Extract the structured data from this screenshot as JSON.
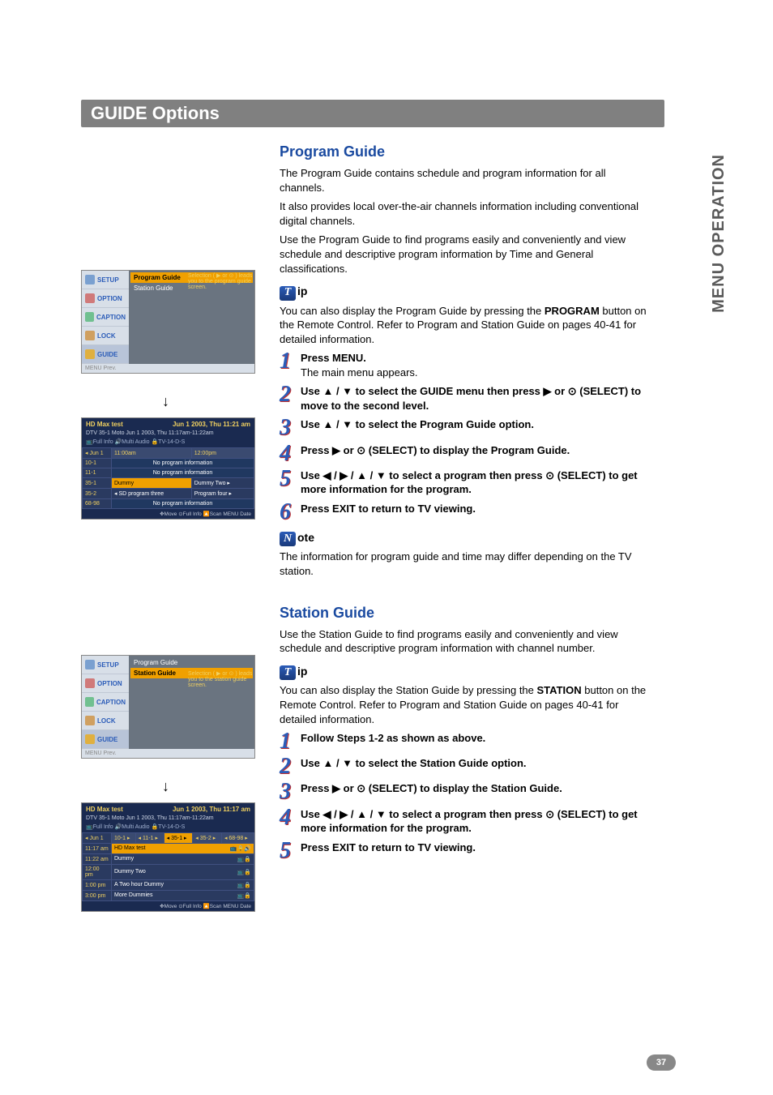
{
  "page": {
    "header": "GUIDE Options",
    "sideTab": "MENU OPERATION",
    "pageNumber": "37"
  },
  "programGuide": {
    "title": "Program Guide",
    "intro1": "The Program Guide contains schedule and program information for all channels.",
    "intro2": "It also provides local over-the-air channels information including conventional digital channels.",
    "intro3": "Use the Program Guide to find programs easily and conveniently and view schedule and descriptive program information by Time and General classifications.",
    "tipGlyph": "T",
    "tipSuffix": "ip",
    "tipBody1": "You can also display the Program Guide by pressing the ",
    "tipBold": "PROGRAM",
    "tipBody2": " button on the Remote Control. Refer to Program and Station Guide on pages 40-41 for detailed information.",
    "steps": [
      {
        "n": "1",
        "bold": "Press MENU.",
        "sub": "The main menu appears."
      },
      {
        "n": "2",
        "bold": "Use ▲ / ▼ to select the GUIDE menu then press ▶ or ⊙ (SELECT) to move to the second level."
      },
      {
        "n": "3",
        "bold": "Use ▲ / ▼ to select the Program Guide option."
      },
      {
        "n": "4",
        "bold": "Press ▶ or ⊙ (SELECT) to display the Program Guide."
      },
      {
        "n": "5",
        "bold": "Use ◀ / ▶ / ▲ / ▼ to select a program then press ⊙ (SELECT) to get more information for the program."
      },
      {
        "n": "6",
        "bold": "Press EXIT to return to TV viewing."
      }
    ],
    "noteGlyph": "N",
    "noteSuffix": "ote",
    "noteBody": "The information for program guide and time may differ depending on the TV station."
  },
  "stationGuide": {
    "title": "Station Guide",
    "intro": "Use the Station Guide to find programs easily and conveniently and view schedule and descriptive program information with channel number.",
    "tipGlyph": "T",
    "tipSuffix": "ip",
    "tipBody1": "You can also display the Station Guide by pressing the ",
    "tipBold": "STATION",
    "tipBody2": " button on the Remote Control. Refer to Program and Station Guide on pages 40-41 for detailed information.",
    "steps": [
      {
        "n": "1",
        "bold": "Follow Steps 1-2 as shown as above."
      },
      {
        "n": "2",
        "bold": "Use ▲ / ▼ to select the Station Guide option."
      },
      {
        "n": "3",
        "bold": "Press ▶ or ⊙ (SELECT) to display the Station Guide."
      },
      {
        "n": "4",
        "bold": "Use ◀ / ▶ / ▲ / ▼ to select a program then press ⊙ (SELECT) to get more information for the program."
      },
      {
        "n": "5",
        "bold": "Press EXIT to return to TV viewing."
      }
    ]
  },
  "menuTabs": [
    {
      "icon": "#7aa0d0",
      "label": "SETUP"
    },
    {
      "icon": "#d07a7a",
      "label": "OPTION"
    },
    {
      "icon": "#70c090",
      "label": "CAPTION"
    },
    {
      "icon": "#d0a060",
      "label": "LOCK"
    },
    {
      "icon": "#e0b040",
      "label": "GUIDE"
    }
  ],
  "menuShot1": {
    "options": [
      "Program Guide",
      "Station Guide"
    ],
    "selectedIndex": 0,
    "hint": "Selection ( ▶ or ⊙ ) leads you to the program guide screen.",
    "prev": "MENU Prev."
  },
  "menuShot2": {
    "options": [
      "Program Guide",
      "Station Guide"
    ],
    "selectedIndex": 1,
    "hint": "Selection ( ▶ or ⊙ ) leads you to the station guide screen.",
    "prev": "MENU Prev."
  },
  "guideShot1": {
    "title": "HD Max test",
    "time": "Jun 1 2003, Thu 11:21 am",
    "sub1": "DTV 35-1 Moto Jun 1 2003, Thu  11:17am-11:22am",
    "sub2": "📺Full Info 🔊Multi Audio 🔒TV-14-D-S",
    "dateCol": "Jun 1",
    "timeCols": [
      "11:00am",
      "12:00pm"
    ],
    "rows": [
      {
        "ch": "10-1",
        "cells": [
          {
            "txt": "No program information",
            "span": 2,
            "cls": "npi"
          }
        ]
      },
      {
        "ch": "11-1",
        "cells": [
          {
            "txt": "No program information",
            "span": 2,
            "cls": "npi"
          }
        ]
      },
      {
        "ch": "35-1",
        "cells": [
          {
            "txt": "Dummy",
            "cls": "sel"
          },
          {
            "txt": "Dummy Two ▸"
          }
        ]
      },
      {
        "ch": "35-2",
        "cells": [
          {
            "txt": "◂ SD program three"
          },
          {
            "txt": "Program four ▸"
          }
        ]
      },
      {
        "ch": "68-98",
        "cells": [
          {
            "txt": "No program information",
            "span": 2,
            "cls": "npi"
          }
        ]
      }
    ],
    "foot": "✥Move ⊙Full Info 🔼Scan  MENU Date"
  },
  "guideShot2": {
    "title": "HD Max test",
    "time": "Jun 1 2003, Thu 11:17 am",
    "sub1": "DTV 35-1 Moto Jun 1 2003, Thu  11:17am-11:22am",
    "sub2": "📺Full Info 🔊Multi Audio 🔒TV-14-D-S",
    "dateCol": "Jun 1",
    "chCols": [
      "10-1",
      "11-1",
      "35-1",
      "35-2",
      "68-98"
    ],
    "chSelIndex": 2,
    "rows": [
      {
        "t": "11:17 am",
        "txt": "HD Max test",
        "cls": "sel",
        "icons": "📺🔒🔊"
      },
      {
        "t": "11:22 am",
        "txt": "Dummy",
        "icons": "📺🔒"
      },
      {
        "t": "12:00 pm",
        "txt": "Dummy Two",
        "icons": "📺🔒"
      },
      {
        "t": "1:00 pm",
        "txt": "A Two hour Dummy",
        "icons": "📺🔒"
      },
      {
        "t": "3:00 pm",
        "txt": "More Dummies",
        "icons": "📺🔒"
      }
    ],
    "foot": "✥Move ⊙Full Info 🔼Scan  MENU Date"
  },
  "style": {
    "headerBg": "#808080",
    "accent": "#1a4aa0",
    "stepNumColor": "#2b5cb8",
    "stepNumShadow": "#c03030"
  }
}
